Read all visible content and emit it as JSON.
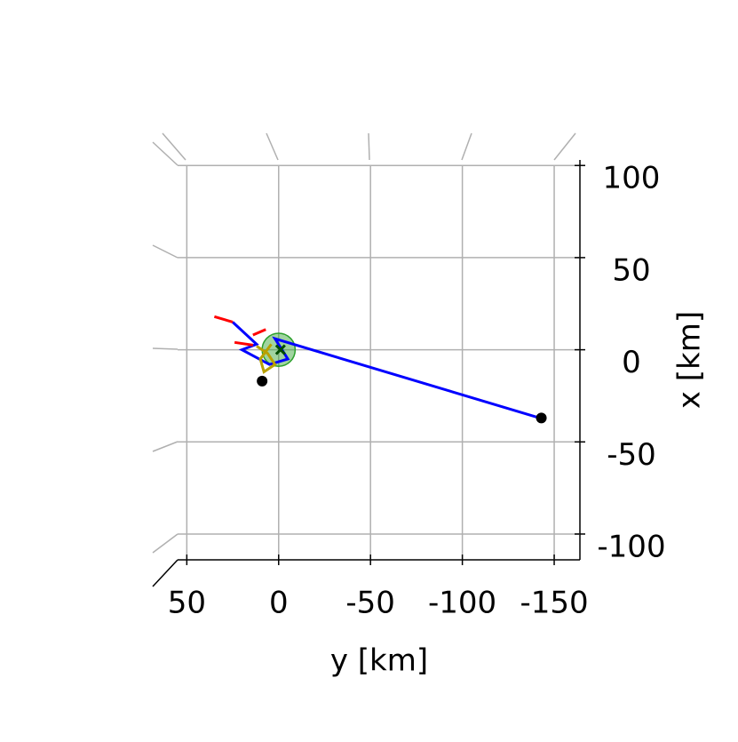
{
  "chart_data": {
    "type": "line",
    "xlabel": "y [km]",
    "ylabel": "x [km]",
    "xlim": [
      55,
      -164
    ],
    "ylim": [
      -114,
      103
    ],
    "xticks": [
      50,
      0,
      -50,
      -100,
      -150
    ],
    "yticks": [
      100,
      50,
      0,
      -50,
      -100
    ],
    "grid": true,
    "series": [
      {
        "color": "#0000ff",
        "x": [
          25,
          12,
          20,
          5,
          -5,
          2,
          -142
        ],
        "values": [
          15,
          3,
          0,
          -8,
          -5,
          6,
          -37
        ]
      },
      {
        "color": "#ff0000",
        "x": [
          35,
          25,
          null,
          24,
          14,
          null,
          14,
          7
        ],
        "values": [
          18,
          15,
          null,
          4,
          2.5,
          null,
          8,
          11
        ]
      },
      {
        "color": "#b8a000",
        "x": [
          12,
          6,
          2,
          8,
          10,
          4
        ],
        "values": [
          2,
          -2,
          -8,
          -12,
          -5,
          3
        ]
      }
    ],
    "points": {
      "color": "#000000",
      "x": [
        9,
        -143
      ],
      "values": [
        -17,
        -37
      ]
    },
    "marker": {
      "color": "#004d00",
      "x": [
        -1
      ],
      "values": [
        0
      ]
    },
    "sphere": {
      "color": "#2ca02c",
      "x": [
        0
      ],
      "values": [
        0
      ],
      "radius": 9
    }
  }
}
